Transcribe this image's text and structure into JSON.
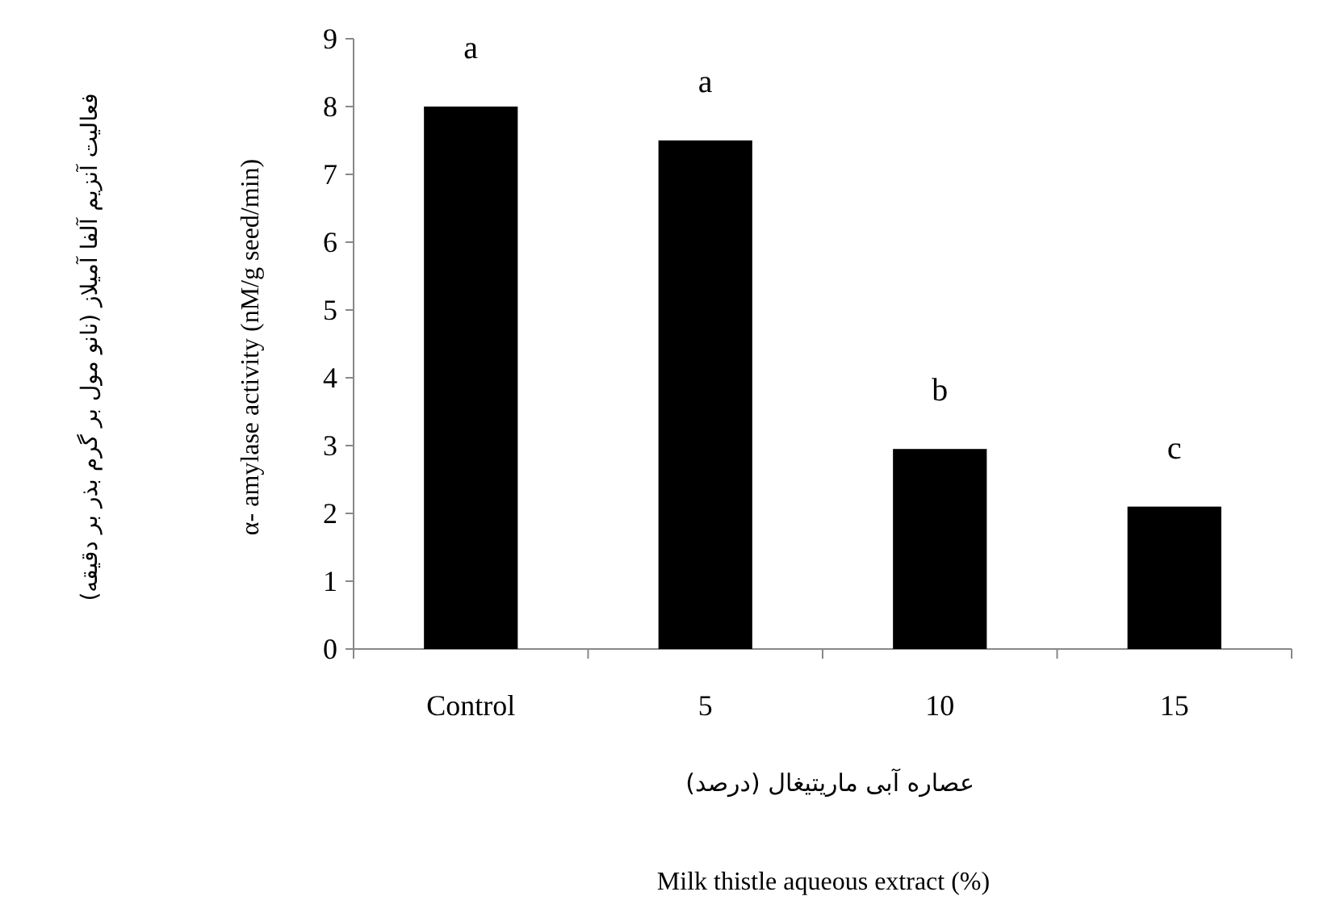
{
  "chart_data": {
    "type": "bar",
    "categories": [
      "Control",
      "5",
      "10",
      "15"
    ],
    "values": [
      8.0,
      7.5,
      2.95,
      2.1
    ],
    "color": "#000000",
    "ylim": [
      0,
      9
    ],
    "yticks": [
      0,
      1,
      2,
      3,
      4,
      5,
      6,
      7,
      8,
      9
    ],
    "xlabel": "عصاره آبی ماریتیغال (درصد)",
    "ylabel": "α- amylase activity (nM/g seed/min)",
    "annotations": [
      "فعالیت آنزیم آلفا آمیلاز (نانو مول بر گرم بذر بر دقیقه)",
      "Milk thistle aqueous extract (%)",
      "a",
      "a",
      "b",
      "c"
    ]
  }
}
